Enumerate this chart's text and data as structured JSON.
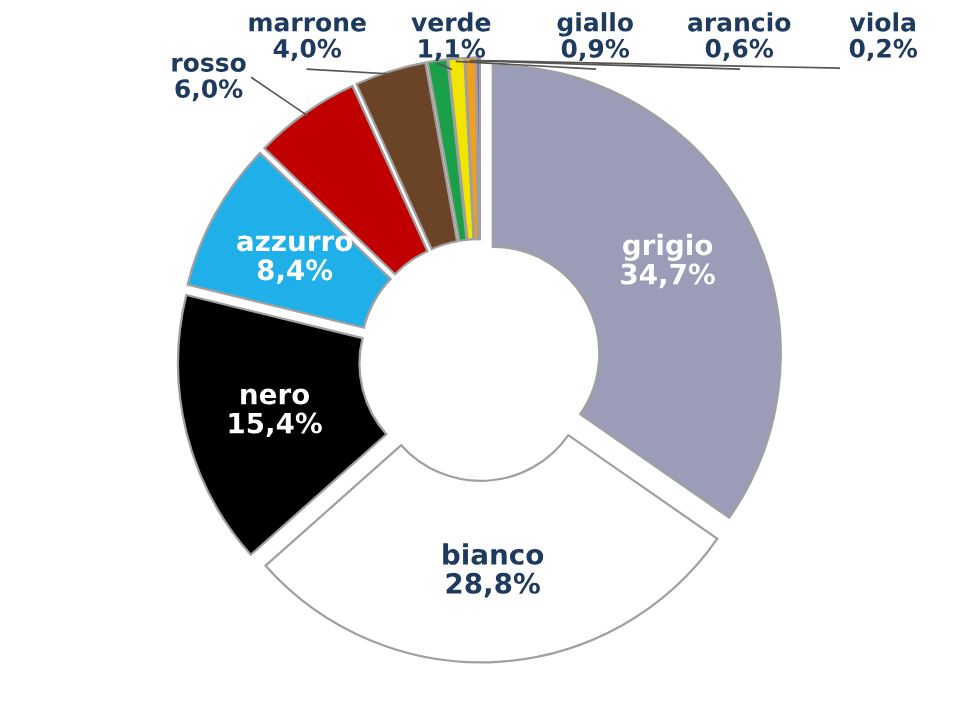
{
  "chart_data": {
    "type": "donut",
    "categories": [
      "grigio",
      "bianco",
      "nero",
      "azzurro",
      "rosso",
      "marrone",
      "verde",
      "giallo",
      "arancio",
      "viola"
    ],
    "values": [
      34.7,
      28.8,
      15.4,
      8.4,
      6.0,
      4.0,
      1.1,
      0.9,
      0.6,
      0.2
    ],
    "colors": [
      "#9a9cb8",
      "#ffffff",
      "#000000",
      "#1fb0ea",
      "#c00000",
      "#6b4428",
      "#1aa048",
      "#f2e600",
      "#f0a020",
      "#8060a0"
    ],
    "value_labels": [
      "34,7%",
      "28,8%",
      "15,4%",
      "8,4%",
      "6,0%",
      "4,0%",
      "1,1%",
      "0,9%",
      "0,6%",
      "0,2%"
    ],
    "legend": false
  }
}
